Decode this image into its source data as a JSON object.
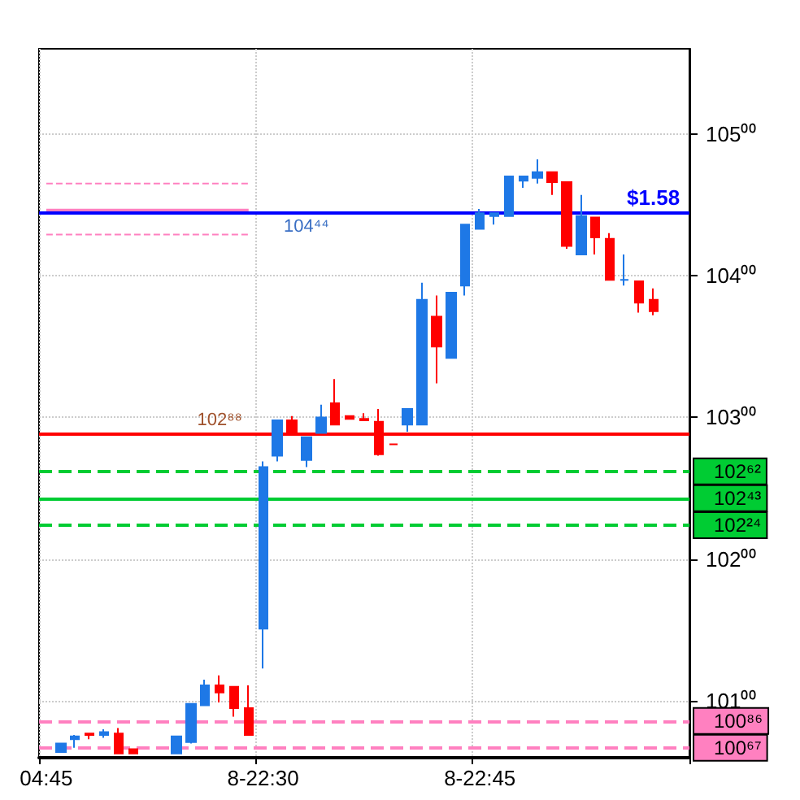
{
  "chart_data": {
    "type": "candlestick",
    "categories": [
      "04:45",
      null,
      null,
      null,
      null,
      null,
      null,
      null,
      null,
      null,
      null,
      null,
      null,
      null,
      null,
      "8-22:30",
      null,
      null,
      null,
      null,
      null,
      null,
      null,
      null,
      null,
      null,
      null,
      null,
      null,
      null,
      "8-22:45",
      null,
      null,
      null,
      null,
      null,
      null,
      null,
      null,
      null,
      null,
      null,
      null,
      null,
      null
    ],
    "ohlc": [
      null,
      [
        100.64,
        100.7,
        100.64,
        100.7
      ],
      [
        100.73,
        100.76,
        100.67,
        100.75
      ],
      [
        100.77,
        100.77,
        100.73,
        100.76
      ],
      [
        100.76,
        100.8,
        100.74,
        100.78
      ],
      [
        100.77,
        100.81,
        100.63,
        100.63
      ],
      [
        100.66,
        100.66,
        100.63,
        100.63
      ],
      null,
      null,
      [
        100.63,
        100.75,
        100.63,
        100.75
      ],
      [
        100.71,
        100.98,
        100.7,
        100.98
      ],
      [
        100.97,
        101.15,
        100.97,
        101.11
      ],
      [
        101.11,
        101.18,
        100.99,
        101.06
      ],
      [
        101.1,
        101.1,
        100.89,
        100.95
      ],
      [
        100.95,
        101.11,
        100.76,
        100.76
      ],
      [
        101.51,
        102.69,
        101.23,
        102.65
      ],
      [
        102.73,
        102.98,
        102.69,
        102.98
      ],
      [
        102.98,
        103.01,
        102.9,
        102.9
      ],
      [
        102.7,
        102.86,
        102.65,
        102.86
      ],
      [
        102.89,
        103.09,
        102.89,
        103.0
      ],
      [
        103.1,
        103.27,
        102.95,
        102.95
      ],
      [
        103.01,
        103.01,
        102.99,
        102.99
      ],
      [
        102.99,
        103.03,
        102.98,
        102.98
      ],
      [
        102.97,
        103.06,
        102.73,
        102.74
      ],
      [
        102.81,
        102.81,
        102.81,
        102.81
      ],
      [
        102.95,
        103.06,
        102.9,
        103.06
      ],
      [
        102.95,
        103.95,
        102.95,
        103.83
      ],
      [
        103.71,
        103.86,
        103.24,
        103.5
      ],
      [
        103.42,
        103.88,
        103.42,
        103.88
      ],
      [
        103.93,
        104.36,
        103.86,
        104.36
      ],
      [
        104.33,
        104.47,
        104.33,
        104.44
      ],
      [
        104.42,
        104.44,
        104.36,
        104.44
      ],
      [
        104.42,
        104.7,
        104.42,
        104.7
      ],
      [
        104.67,
        104.7,
        104.62,
        104.7
      ],
      [
        104.69,
        104.82,
        104.65,
        104.73
      ],
      [
        104.73,
        104.73,
        104.57,
        104.66
      ],
      [
        104.66,
        104.66,
        104.19,
        104.21
      ],
      [
        104.15,
        104.57,
        104.15,
        104.42
      ],
      [
        104.41,
        104.41,
        104.15,
        104.27
      ],
      [
        104.26,
        104.3,
        103.97,
        103.97
      ],
      [
        103.97,
        104.15,
        103.93,
        103.97
      ],
      [
        103.96,
        103.96,
        103.74,
        103.81
      ],
      [
        103.83,
        103.91,
        103.72,
        103.75
      ],
      null,
      null
    ],
    "colors": [
      null,
      "#1e78e6",
      "#1e78e6",
      "#ff0000",
      "#1e78e6",
      "#ff0000",
      "#ff0000",
      null,
      null,
      "#1e78e6",
      "#1e78e6",
      "#1e78e6",
      "#ff0000",
      "#ff0000",
      "#ff0000",
      "#1e78e6",
      "#1e78e6",
      "#ff0000",
      "#1e78e6",
      "#1e78e6",
      "#ff0000",
      "#ff0000",
      "#ff0000",
      "#ff0000",
      "#ff0000",
      "#1e78e6",
      "#1e78e6",
      "#ff0000",
      "#1e78e6",
      "#1e78e6",
      "#1e78e6",
      "#1e78e6",
      "#1e78e6",
      "#1e78e6",
      "#1e78e6",
      "#ff0000",
      "#ff0000",
      "#1e78e6",
      "#ff0000",
      "#ff0000",
      "#1e78e6",
      "#ff0000",
      "#ff0000",
      null,
      null
    ],
    "series": [
      {
        "type": "line",
        "color": "#ff80c0",
        "line_style": "solid",
        "values": [
          104.46,
          104.46,
          104.46,
          104.46,
          104.46,
          104.46,
          104.46,
          104.46,
          104.46,
          104.46,
          104.46,
          104.46,
          104.46,
          104.46,
          104.46,
          null,
          null,
          null,
          null,
          null,
          null,
          null,
          null,
          null,
          null,
          null,
          null,
          null,
          null,
          null,
          null,
          null,
          null,
          null,
          null,
          null,
          null,
          null,
          null,
          null,
          null,
          null,
          null,
          null,
          null
        ]
      },
      {
        "type": "line",
        "color": "#ff80c0",
        "line_style": "dashed",
        "values": [
          104.65,
          104.65,
          104.65,
          104.65,
          104.65,
          104.65,
          104.65,
          104.65,
          104.65,
          104.65,
          104.65,
          104.65,
          104.65,
          104.65,
          104.65,
          null,
          null,
          null,
          null,
          null,
          null,
          null,
          null,
          null,
          null,
          null,
          null,
          null,
          null,
          null,
          null,
          null,
          null,
          null,
          null,
          null,
          null,
          null,
          null,
          null,
          null,
          null,
          null,
          null,
          null
        ]
      },
      {
        "type": "line",
        "color": "#ff80c0",
        "line_style": "dashed",
        "values": [
          104.29,
          104.29,
          104.29,
          104.29,
          104.29,
          104.29,
          104.29,
          104.29,
          104.29,
          104.29,
          104.29,
          104.29,
          104.29,
          104.29,
          104.29,
          null,
          null,
          null,
          null,
          null,
          null,
          null,
          null,
          null,
          null,
          null,
          null,
          null,
          null,
          null,
          null,
          null,
          null,
          null,
          null,
          null,
          null,
          null,
          null,
          null,
          null,
          null,
          null,
          null,
          null
        ]
      }
    ],
    "ylim": [
      100.6,
      105.6
    ],
    "yticks": [
      {
        "value": 101,
        "label": "101⁰⁰"
      },
      {
        "value": 102,
        "label": "102⁰⁰"
      },
      {
        "value": 103,
        "label": "103⁰⁰"
      },
      {
        "value": 104,
        "label": "104⁰⁰"
      },
      {
        "value": 105,
        "label": "105⁰⁰"
      }
    ],
    "grid": true,
    "ref_lines": [
      {
        "axis": "y",
        "value": 104.44,
        "color": "#0000ff",
        "line_style": "solid"
      },
      {
        "axis": "y",
        "value": 102.88,
        "color": "#ff0000",
        "line_style": "solid"
      },
      {
        "axis": "y",
        "value": 102.62,
        "label": "102⁶²",
        "color": "#00cc33",
        "line_style": "dashed"
      },
      {
        "axis": "y",
        "value": 102.43,
        "label": "102⁴³",
        "color": "#00cc33",
        "line_style": "solid"
      },
      {
        "axis": "y",
        "value": 102.24,
        "label": "102²⁴",
        "color": "#00cc33",
        "line_style": "dashed"
      },
      {
        "axis": "y",
        "value": 100.86,
        "label": "100⁸⁶",
        "color": "#ff80c0",
        "line_style": "dashed"
      },
      {
        "axis": "y",
        "value": 100.67,
        "label": "100⁶⁷",
        "color": "#ff80c0",
        "line_style": "dashed"
      }
    ],
    "annotations": [
      {
        "text": "104⁴⁴",
        "y": 104.44
      },
      {
        "text": "102⁸⁸",
        "y": 102.88
      },
      {
        "text": "$1.58",
        "y": 104.44
      }
    ]
  }
}
